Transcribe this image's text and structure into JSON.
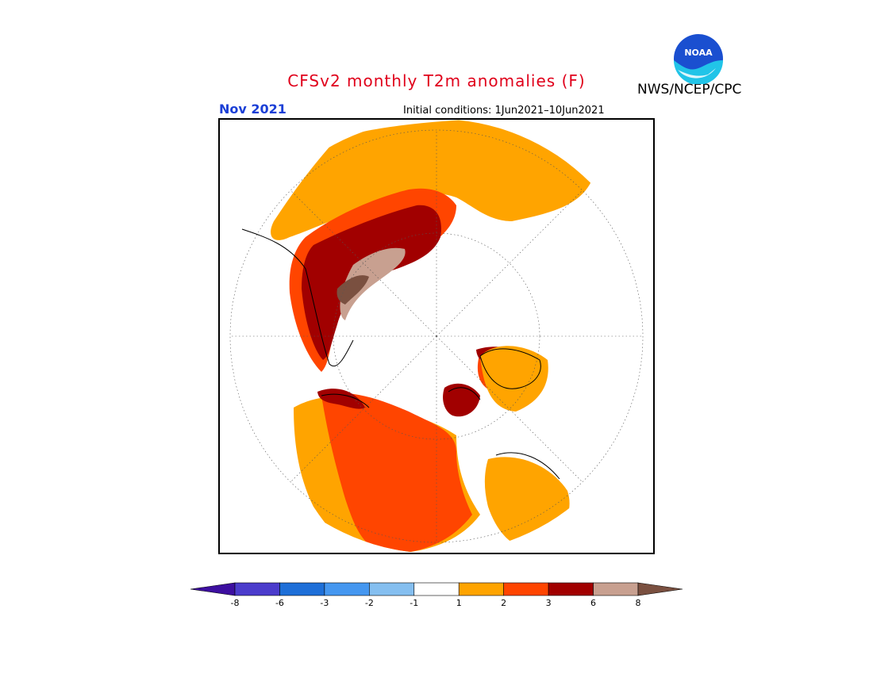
{
  "title": "CFSv2 monthly T2m anomalies (F)",
  "month_label": "Nov 2021",
  "initial_conditions": "Initial conditions: 1Jun2021–10Jun2021",
  "agency": "NWS/NCEP/CPC",
  "logo_text": "NOAA",
  "colors": {
    "title": "#e0001b",
    "month": "#1b3fd6",
    "anom_1_2": "#ffa400",
    "anom_2_3": "#ff4500",
    "anom_3_6": "#a10000",
    "anom_6_8": "#c8a090",
    "anom_gt8": "#7a5040"
  },
  "colorbar": {
    "ticks": [
      "-8",
      "-6",
      "-3",
      "-2",
      "-1",
      "1",
      "2",
      "3",
      "6",
      "8"
    ],
    "colors": [
      "#3d0fa0",
      "#4b3ccc",
      "#1e6fd8",
      "#4597f0",
      "#85bff0",
      "#ffffff",
      "#ffa400",
      "#ff4500",
      "#a10000",
      "#c8a090",
      "#7a5040"
    ]
  }
}
